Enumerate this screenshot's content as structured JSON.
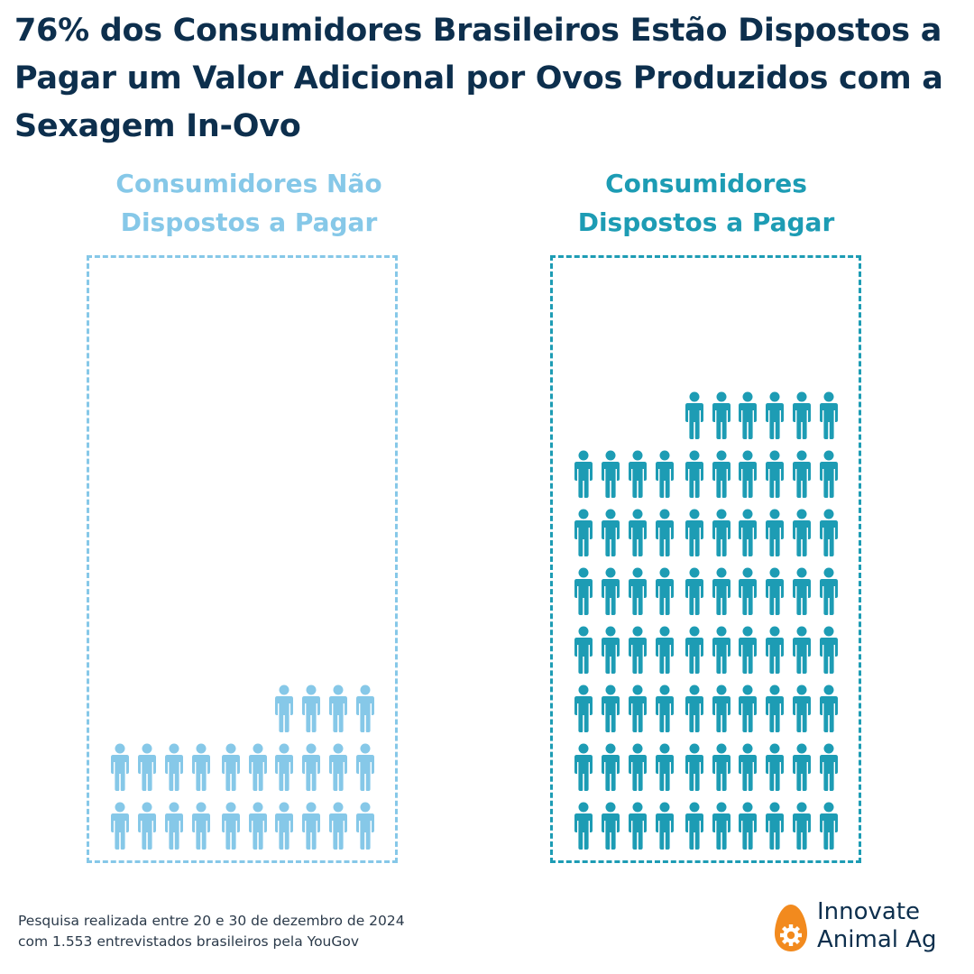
{
  "title": "76% dos Consumidores Brasileiros Estão Dispostos a Pagar um Valor Adicional por Ovos Produzidos com a Sexagem In-Ovo",
  "colors": {
    "title": "#0d2f4d",
    "not_willing": "#86c8e8",
    "willing": "#1d9cb4",
    "logo_orange": "#f28a1e"
  },
  "footnote": {
    "line1": "Pesquisa realizada entre 20 e 30 de dezembro de 2024",
    "line2": "com 1.553 entrevistados brasileiros pela YouGov"
  },
  "logo": {
    "line1": "Innovate",
    "line2": "Animal Ag",
    "icon": "egg-gear-icon"
  },
  "chart_data": {
    "type": "pictogram",
    "unit": "person-icon",
    "categories": [
      "Consumidores Não Dispostos a Pagar",
      "Consumidores Dispostos a Pagar"
    ],
    "series": [
      {
        "name": "Consumidores Não Dispostos a Pagar",
        "label_lines": [
          "Consumidores Não",
          "Dispostos a Pagar"
        ],
        "icon_count": 24
      },
      {
        "name": "Consumidores Dispostos a Pagar",
        "label_lines": [
          "Consumidores",
          "Dispostos a Pagar"
        ],
        "icon_count": 76
      }
    ],
    "icons_per_row": 10
  }
}
